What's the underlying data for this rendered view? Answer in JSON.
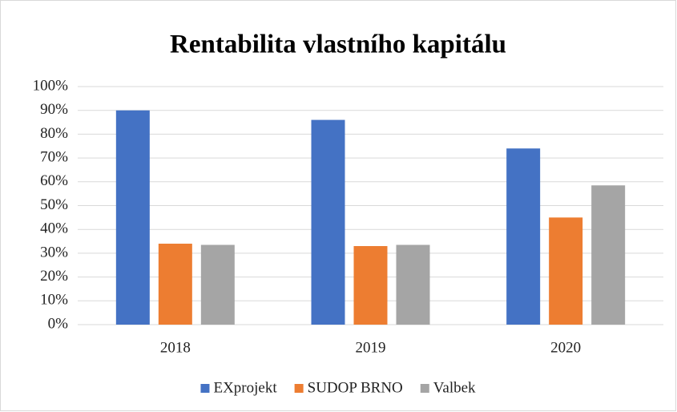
{
  "chart_data": {
    "type": "bar",
    "title": "Rentabilita vlastního kapitálu",
    "categories": [
      "2018",
      "2019",
      "2020"
    ],
    "series": [
      {
        "name": "EXprojekt",
        "color": "#4472c4",
        "values": [
          90,
          86,
          74
        ]
      },
      {
        "name": "SUDOP BRNO",
        "color": "#ed7d31",
        "values": [
          34,
          33,
          45
        ]
      },
      {
        "name": "Valbek",
        "color": "#a5a5a5",
        "values": [
          33.5,
          33.5,
          58.5
        ]
      }
    ],
    "ylim": [
      0,
      100
    ],
    "yticks": [
      {
        "value": 0,
        "label": "0%"
      },
      {
        "value": 10,
        "label": "10%"
      },
      {
        "value": 20,
        "label": "20%"
      },
      {
        "value": 30,
        "label": "30%"
      },
      {
        "value": 40,
        "label": "40%"
      },
      {
        "value": 50,
        "label": "50%"
      },
      {
        "value": 60,
        "label": "60%"
      },
      {
        "value": 70,
        "label": "70%"
      },
      {
        "value": 80,
        "label": "80%"
      },
      {
        "value": 90,
        "label": "90%"
      },
      {
        "value": 100,
        "label": "100%"
      }
    ],
    "grid": true,
    "legend": "bottom"
  }
}
